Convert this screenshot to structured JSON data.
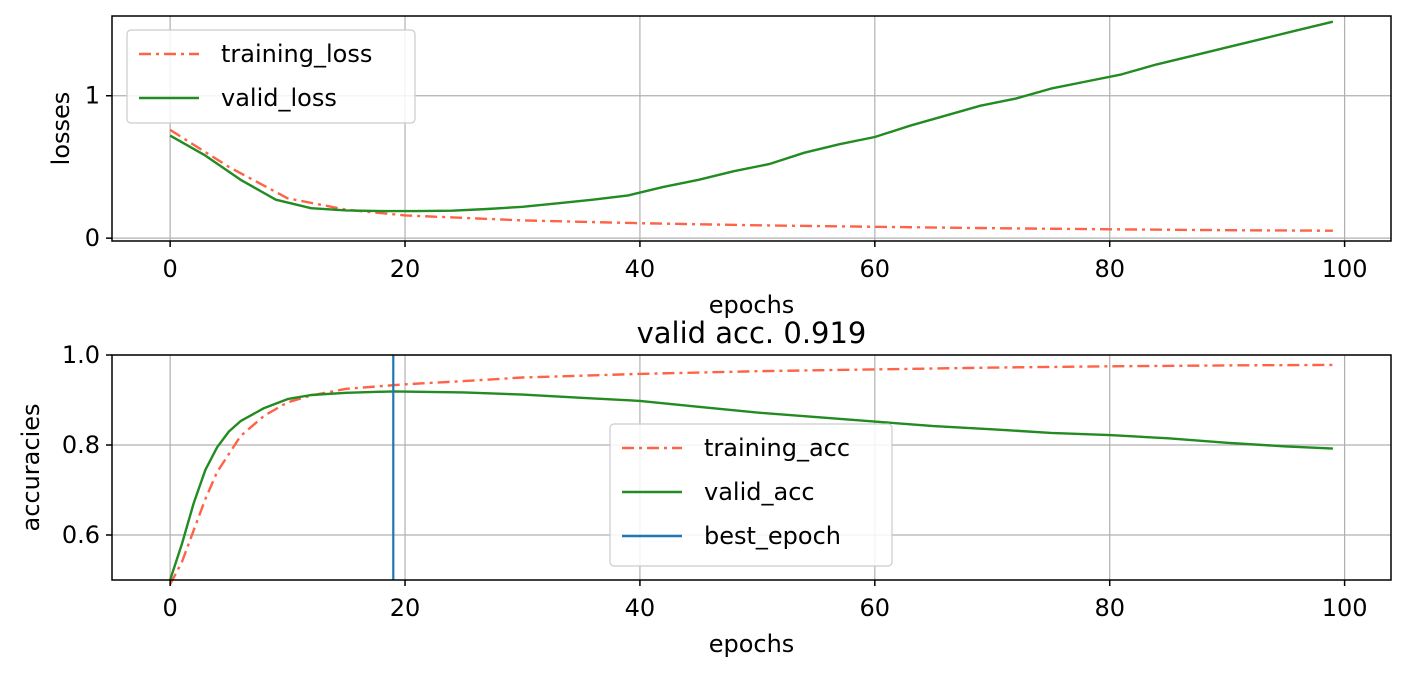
{
  "chart_data": [
    {
      "type": "line",
      "title": "",
      "xlabel": "epochs",
      "ylabel": "losses",
      "xlim": [
        -4.95,
        103.95
      ],
      "ylim": [
        -0.02,
        1.56
      ],
      "xticks": [
        0,
        20,
        40,
        60,
        80,
        100
      ],
      "xtick_labels": [
        "0",
        "20",
        "40",
        "60",
        "80",
        "100"
      ],
      "yticks": [
        0,
        1
      ],
      "ytick_labels": [
        "0",
        "1"
      ],
      "grid": true,
      "legend_position": "upper-left",
      "series": [
        {
          "name": "training_loss",
          "color": "#FF6347",
          "style": "dashdot",
          "x": [
            0,
            5,
            10,
            15,
            20,
            30,
            40,
            50,
            60,
            70,
            80,
            90,
            99
          ],
          "y": [
            0.76,
            0.5,
            0.28,
            0.2,
            0.16,
            0.125,
            0.105,
            0.09,
            0.08,
            0.07,
            0.062,
            0.056,
            0.052
          ]
        },
        {
          "name": "valid_loss",
          "color": "#228B22",
          "style": "solid",
          "x": [
            0,
            3,
            6,
            9,
            12,
            15,
            18,
            21,
            24,
            27,
            30,
            33,
            36,
            39,
            42,
            45,
            48,
            51,
            54,
            57,
            60,
            63,
            66,
            69,
            72,
            75,
            78,
            81,
            84,
            87,
            90,
            93,
            96,
            99
          ],
          "y": [
            0.72,
            0.58,
            0.41,
            0.27,
            0.21,
            0.195,
            0.19,
            0.19,
            0.193,
            0.205,
            0.22,
            0.245,
            0.27,
            0.3,
            0.36,
            0.41,
            0.47,
            0.52,
            0.6,
            0.66,
            0.71,
            0.79,
            0.86,
            0.93,
            0.98,
            1.05,
            1.1,
            1.15,
            1.22,
            1.28,
            1.34,
            1.4,
            1.46,
            1.52
          ]
        }
      ]
    },
    {
      "type": "line",
      "title": "valid acc. 0.919",
      "xlabel": "epochs",
      "ylabel": "accuracies",
      "xlim": [
        -4.95,
        103.95
      ],
      "ylim": [
        0.5,
        1.0
      ],
      "xticks": [
        0,
        20,
        40,
        60,
        80,
        100
      ],
      "xtick_labels": [
        "0",
        "20",
        "40",
        "60",
        "80",
        "100"
      ],
      "yticks": [
        0.6,
        0.8,
        1.0
      ],
      "ytick_labels": [
        "0.6",
        "0.8",
        "1.0"
      ],
      "grid": true,
      "legend_position": "center",
      "series": [
        {
          "name": "training_acc",
          "color": "#FF6347",
          "style": "dashdot",
          "x": [
            0,
            1,
            2,
            3,
            4,
            5,
            6,
            8,
            10,
            12,
            15,
            20,
            25,
            30,
            40,
            50,
            60,
            70,
            80,
            90,
            99
          ],
          "y": [
            0.49,
            0.54,
            0.61,
            0.68,
            0.74,
            0.78,
            0.82,
            0.865,
            0.895,
            0.91,
            0.925,
            0.935,
            0.942,
            0.95,
            0.958,
            0.964,
            0.968,
            0.972,
            0.975,
            0.977,
            0.978
          ]
        },
        {
          "name": "valid_acc",
          "color": "#228B22",
          "style": "solid",
          "x": [
            0,
            1,
            2,
            3,
            4,
            5,
            6,
            8,
            10,
            12,
            15,
            19,
            25,
            30,
            35,
            40,
            45,
            50,
            55,
            60,
            65,
            70,
            75,
            80,
            85,
            90,
            95,
            99
          ],
          "y": [
            0.5,
            0.58,
            0.67,
            0.745,
            0.795,
            0.83,
            0.853,
            0.882,
            0.902,
            0.911,
            0.916,
            0.919,
            0.917,
            0.912,
            0.905,
            0.898,
            0.885,
            0.872,
            0.862,
            0.852,
            0.842,
            0.835,
            0.827,
            0.822,
            0.815,
            0.805,
            0.797,
            0.792
          ]
        },
        {
          "name": "best_epoch",
          "color": "#1f77b4",
          "style": "vline",
          "x_value": 19
        }
      ]
    }
  ]
}
